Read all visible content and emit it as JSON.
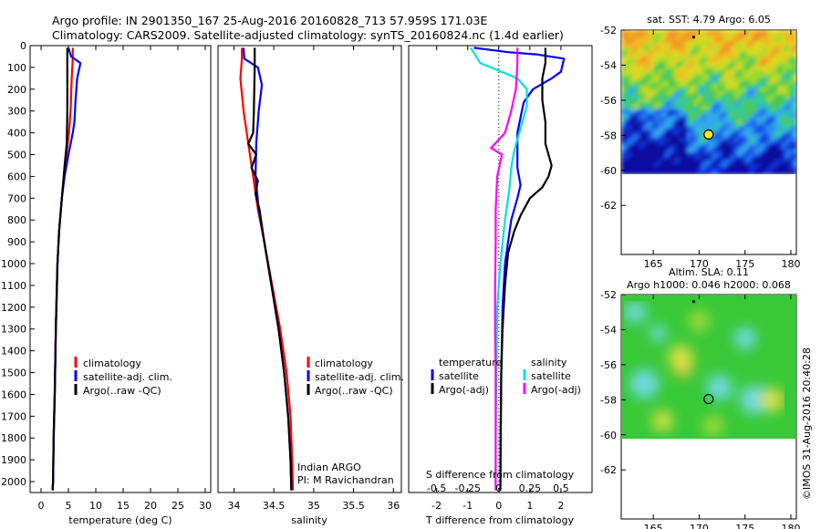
{
  "header": {
    "title_line1": "Argo profile: IN 2901350_167 25-Aug-2016 20160828_713 57.959S 171.03E",
    "title_line2": "Climatology: CARS2009. Satellite-adjusted climatology: synTS_20160824.nc (1.4d earlier)"
  },
  "colors": {
    "climatology": "#ff0000",
    "satellite": "#0000ff",
    "argo": "#000000",
    "cyan": "#00e0e0",
    "magenta": "#ff00ff"
  },
  "chart_data": [
    {
      "type": "line",
      "panel": "temperature",
      "xlabel": "temperature (deg C)",
      "xlim": [
        -2,
        31
      ],
      "ylim": [
        2050,
        0
      ],
      "xticks": [
        "0",
        "5",
        "10",
        "15",
        "20",
        "25",
        "30"
      ],
      "yticks": [
        "0",
        "100",
        "200",
        "300",
        "400",
        "500",
        "600",
        "700",
        "800",
        "900",
        "1000",
        "1100",
        "1200",
        "1300",
        "1400",
        "1500",
        "1600",
        "1700",
        "1800",
        "1900",
        "2000"
      ],
      "legend": [
        "climatology",
        "satellite-adj. clim.",
        "Argo(..raw -QC)"
      ],
      "series": [
        {
          "name": "climatology",
          "color": "#ff0000",
          "points": [
            [
              5.8,
              10
            ],
            [
              5.8,
              60
            ],
            [
              5.6,
              150
            ],
            [
              5.4,
              300
            ],
            [
              5.1,
              400
            ],
            [
              4.4,
              550
            ],
            [
              3.8,
              700
            ],
            [
              3.3,
              850
            ],
            [
              3.0,
              1000
            ],
            [
              2.7,
              1300
            ],
            [
              2.5,
              1600
            ],
            [
              2.3,
              1800
            ],
            [
              2.2,
              2000
            ],
            [
              2.1,
              2040
            ]
          ]
        },
        {
          "name": "satellite-adj. clim.",
          "color": "#0000ff",
          "points": [
            [
              5.0,
              10
            ],
            [
              5.5,
              50
            ],
            [
              7.2,
              80
            ],
            [
              6.6,
              150
            ],
            [
              6.3,
              250
            ],
            [
              6.1,
              350
            ],
            [
              5.8,
              400
            ],
            [
              5.0,
              500
            ],
            [
              4.3,
              600
            ],
            [
              3.8,
              700
            ],
            [
              3.3,
              850
            ],
            [
              3.0,
              1000
            ],
            [
              2.7,
              1300
            ],
            [
              2.5,
              1600
            ],
            [
              2.3,
              1800
            ],
            [
              2.2,
              2000
            ],
            [
              2.1,
              2040
            ]
          ]
        },
        {
          "name": "Argo(..raw -QC)",
          "color": "#000000",
          "points": [
            [
              4.8,
              10
            ],
            [
              4.8,
              100
            ],
            [
              4.8,
              300
            ],
            [
              4.7,
              450
            ],
            [
              4.3,
              550
            ],
            [
              3.8,
              700
            ],
            [
              3.3,
              850
            ],
            [
              3.0,
              1000
            ],
            [
              2.7,
              1300
            ],
            [
              2.5,
              1600
            ],
            [
              2.3,
              1800
            ],
            [
              2.2,
              2000
            ],
            [
              2.1,
              2040
            ]
          ]
        }
      ]
    },
    {
      "type": "line",
      "panel": "salinity",
      "xlabel": "salinity",
      "xlim": [
        33.8,
        36.1
      ],
      "ylim": [
        2050,
        0
      ],
      "xticks": [
        "34",
        "34.5",
        "35",
        "35.5",
        "36"
      ],
      "legend": [
        "climatology",
        "satellite-adj. clim.",
        "Argo(..raw -QC)"
      ],
      "annotation": [
        "Indian ARGO",
        "PI: M Ravichandran"
      ],
      "series": [
        {
          "name": "climatology",
          "color": "#ff0000",
          "points": [
            [
              34.1,
              10
            ],
            [
              34.1,
              60
            ],
            [
              34.08,
              150
            ],
            [
              34.12,
              300
            ],
            [
              34.18,
              450
            ],
            [
              34.24,
              600
            ],
            [
              34.3,
              750
            ],
            [
              34.38,
              900
            ],
            [
              34.48,
              1100
            ],
            [
              34.58,
              1300
            ],
            [
              34.66,
              1500
            ],
            [
              34.71,
              1700
            ],
            [
              34.73,
              1900
            ],
            [
              34.74,
              2040
            ]
          ]
        },
        {
          "name": "satellite-adj. clim.",
          "color": "#0000ff",
          "points": [
            [
              34.12,
              10
            ],
            [
              34.13,
              60
            ],
            [
              34.3,
              100
            ],
            [
              34.35,
              180
            ],
            [
              34.31,
              300
            ],
            [
              34.28,
              450
            ],
            [
              34.27,
              600
            ],
            [
              34.31,
              750
            ],
            [
              34.38,
              900
            ],
            [
              34.47,
              1100
            ],
            [
              34.56,
              1300
            ],
            [
              34.63,
              1500
            ],
            [
              34.68,
              1700
            ],
            [
              34.71,
              1900
            ],
            [
              34.72,
              2040
            ]
          ]
        },
        {
          "name": "Argo(..raw -QC)",
          "color": "#000000",
          "points": [
            [
              34.26,
              10
            ],
            [
              34.26,
              100
            ],
            [
              34.25,
              300
            ],
            [
              34.24,
              400
            ],
            [
              34.18,
              450
            ],
            [
              34.28,
              500
            ],
            [
              34.22,
              560
            ],
            [
              34.3,
              620
            ],
            [
              34.27,
              680
            ],
            [
              34.32,
              750
            ],
            [
              34.38,
              900
            ],
            [
              34.47,
              1100
            ],
            [
              34.56,
              1300
            ],
            [
              34.63,
              1500
            ],
            [
              34.68,
              1700
            ],
            [
              34.71,
              1900
            ],
            [
              34.72,
              2040
            ]
          ]
        }
      ]
    },
    {
      "type": "line",
      "panel": "difference",
      "xlabel": "T difference from climatology",
      "xlabel_top": "S difference from climatology",
      "xlim": [
        -2.9,
        3.0
      ],
      "ylim": [
        2050,
        0
      ],
      "xticks": [
        "-2",
        "-1",
        "0",
        "1",
        "2"
      ],
      "xticks_top": [
        "-0.5",
        "-0.25",
        "0",
        "0.25",
        "0.5"
      ],
      "legend_temperature": {
        "title": "temperature",
        "items": [
          "satellite",
          "Argo(-adj)"
        ]
      },
      "legend_salinity": {
        "title": "salinity",
        "items": [
          "satellite",
          "Argo(-adj)"
        ]
      },
      "series": [
        {
          "name": "temperature satellite",
          "color": "#0000ff",
          "points": [
            [
              -0.8,
              10
            ],
            [
              0.3,
              30
            ],
            [
              1.2,
              40
            ],
            [
              2.1,
              60
            ],
            [
              2.0,
              120
            ],
            [
              1.7,
              150
            ],
            [
              1.1,
              200
            ],
            [
              0.8,
              260
            ],
            [
              0.7,
              330
            ],
            [
              0.6,
              400
            ],
            [
              0.6,
              480
            ],
            [
              0.6,
              560
            ],
            [
              0.7,
              640
            ],
            [
              0.6,
              700
            ],
            [
              0.4,
              800
            ],
            [
              0.3,
              900
            ],
            [
              0.2,
              1000
            ],
            [
              0.12,
              1200
            ],
            [
              0.08,
              1500
            ],
            [
              0.06,
              1800
            ],
            [
              0.05,
              2040
            ]
          ]
        },
        {
          "name": "temperature Argo(-adj)",
          "color": "#000000",
          "points": [
            [
              1.5,
              10
            ],
            [
              1.5,
              80
            ],
            [
              1.4,
              150
            ],
            [
              1.4,
              250
            ],
            [
              1.5,
              350
            ],
            [
              1.5,
              450
            ],
            [
              1.7,
              550
            ],
            [
              1.6,
              600
            ],
            [
              1.4,
              650
            ],
            [
              1.0,
              700
            ],
            [
              0.7,
              780
            ],
            [
              0.5,
              850
            ],
            [
              0.3,
              950
            ],
            [
              0.2,
              1100
            ],
            [
              0.12,
              1300
            ],
            [
              0.08,
              1500
            ],
            [
              0.06,
              1800
            ],
            [
              0.05,
              2040
            ]
          ]
        },
        {
          "name": "salinity satellite",
          "color": "#00e0e0",
          "points": [
            [
              -0.9,
              10
            ],
            [
              -0.6,
              80
            ],
            [
              0.6,
              150
            ],
            [
              0.9,
              200
            ],
            [
              0.9,
              280
            ],
            [
              0.7,
              380
            ],
            [
              0.5,
              480
            ],
            [
              0.4,
              560
            ],
            [
              0.35,
              650
            ],
            [
              0.2,
              800
            ],
            [
              0.05,
              1000
            ],
            [
              -0.05,
              1200
            ],
            [
              -0.08,
              1500
            ],
            [
              -0.1,
              1800
            ],
            [
              -0.1,
              2040
            ]
          ]
        },
        {
          "name": "salinity Argo(-adj)",
          "color": "#ff00ff",
          "points": [
            [
              0.6,
              10
            ],
            [
              0.6,
              80
            ],
            [
              0.55,
              200
            ],
            [
              0.4,
              300
            ],
            [
              0.2,
              400
            ],
            [
              -0.25,
              470
            ],
            [
              0.1,
              500
            ],
            [
              -0.05,
              600
            ],
            [
              -0.1,
              750
            ],
            [
              -0.1,
              900
            ],
            [
              -0.12,
              1100
            ],
            [
              -0.12,
              1300
            ],
            [
              -0.1,
              1500
            ],
            [
              -0.1,
              1800
            ],
            [
              -0.1,
              2040
            ]
          ]
        }
      ]
    },
    {
      "type": "heatmap",
      "panel": "sst-map",
      "title": "sat. SST: 4.79 Argo: 6.05",
      "xlim": [
        161.5,
        180.6
      ],
      "ylim": [
        -64.8,
        -52
      ],
      "xticks": [
        "165",
        "170",
        "175",
        "180"
      ],
      "yticks": [
        "-52",
        "-54",
        "-56",
        "-58",
        "-60",
        "-62"
      ],
      "data_extent": {
        "lon": [
          161.5,
          180.6
        ],
        "lat": [
          -60.2,
          -52
        ]
      },
      "profile_position": {
        "lon": 171.03,
        "lat": -57.959
      },
      "other_marker": {
        "lon": 169.4,
        "lat": -52.4
      }
    },
    {
      "type": "heatmap",
      "panel": "sla-map",
      "title": "Altim. SLA: 0.11",
      "subtitle": "Argo h1000: 0.046 h2000: 0.068",
      "xlim": [
        161.5,
        180.6
      ],
      "ylim": [
        -64.8,
        -52
      ],
      "xticks": [
        "165",
        "170",
        "175",
        "180"
      ],
      "yticks": [
        "-52",
        "-54",
        "-56",
        "-58",
        "-60",
        "-62"
      ],
      "data_extent": {
        "lon": [
          161.5,
          180.6
        ],
        "lat": [
          -60.2,
          -52
        ]
      },
      "profile_position": {
        "lon": 171.03,
        "lat": -57.959
      },
      "other_marker": {
        "lon": 169.4,
        "lat": -52.4
      }
    }
  ],
  "credit": "©IMOS 31-Aug-2016 20:40:28"
}
